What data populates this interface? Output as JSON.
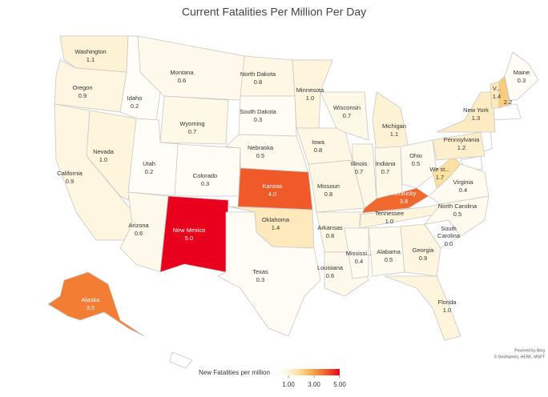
{
  "chart_data": {
    "type": "choropleth",
    "title": "Current Fatalities Per Million Per Day",
    "regions": [
      "Washington",
      "Oregon",
      "California",
      "Nevada",
      "Idaho",
      "Montana",
      "Wyoming",
      "Utah",
      "Arizona",
      "Colorado",
      "New Mexico",
      "North Dakota",
      "South Dakota",
      "Nebraska",
      "Kansas",
      "Oklahoma",
      "Texas",
      "Minnesota",
      "Iowa",
      "Missouri",
      "Arkansas",
      "Louisiana",
      "Wisconsin",
      "Illinois",
      "Michigan",
      "Indiana",
      "Ohio",
      "Kentucky",
      "Tennessee",
      "Mississi...",
      "Alabama",
      "Georgia",
      "Florida",
      "South Carolina",
      "North Carolina",
      "Virginia",
      "We st...",
      "Pennsylvania",
      "New York",
      "V...",
      null,
      "Maine",
      "Alaska"
    ],
    "values": [
      1.1,
      0.9,
      0.9,
      1.0,
      0.2,
      0.6,
      0.7,
      0.2,
      0.6,
      0.3,
      5.0,
      0.8,
      0.3,
      0.5,
      4.0,
      1.4,
      0.3,
      1.0,
      0.8,
      0.8,
      0.8,
      0.6,
      0.7,
      0.7,
      1.1,
      0.7,
      0.5,
      3.8,
      1.0,
      0.4,
      0.5,
      0.9,
      1.0,
      0.0,
      0.5,
      0.4,
      1.7,
      1.2,
      1.3,
      1.4,
      2.2,
      0.3,
      3.5
    ],
    "value_labels": [
      "1.1",
      "0.9",
      "0.9",
      "1.0",
      "0.2",
      "0.6",
      "0.7",
      "0.2",
      "0.6",
      "0.3",
      "5.0",
      "0.8",
      "0.3",
      "0.5",
      "4.0",
      "1.4",
      "0.3",
      "1.0",
      "0.8",
      "0.8",
      "0.8",
      "0.6",
      "0.7",
      "0.7",
      "1.1",
      "0.7",
      "0.5",
      "3.8",
      "1.0",
      "0.4",
      "0.5",
      "0.9",
      "1.0",
      "0.0",
      "0.5",
      "0.4",
      "1.7",
      "1.2",
      "1.3",
      "1.4",
      "2.2",
      "0.3",
      "3.5"
    ],
    "legend_title": "New Fatalities per million",
    "clim": [
      0,
      5
    ],
    "colorscale": [
      [
        0,
        "#ffffff"
      ],
      [
        1,
        "#fef5dc"
      ],
      [
        2,
        "#fbd88a"
      ],
      [
        3,
        "#f7a040"
      ],
      [
        4,
        "#f05a28"
      ],
      [
        5,
        "#e8001c"
      ]
    ],
    "cticks": [
      {
        "value": 1,
        "label": "1.00"
      },
      {
        "value": 3,
        "label": "3.00"
      },
      {
        "value": 5,
        "label": "5.00"
      }
    ],
    "credits": [
      "Powered by Bing",
      "© GeoNames, HERE, MSFT"
    ]
  }
}
